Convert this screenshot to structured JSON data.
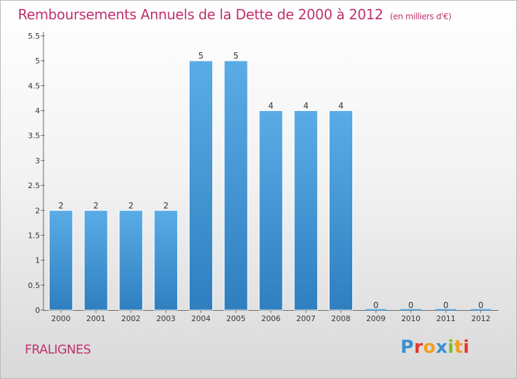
{
  "header": {
    "title": "Remboursements Annuels de la Dette de 2000 à 2012",
    "unit": "(en milliers d'€)"
  },
  "footer": {
    "commune": "FRALIGNES",
    "logo_letters": [
      {
        "ch": "P",
        "color": "#3a8fd0"
      },
      {
        "ch": "r",
        "color": "#e0392b"
      },
      {
        "ch": "o",
        "color": "#f0a020"
      },
      {
        "ch": "x",
        "color": "#3a8fd0"
      },
      {
        "ch": "i",
        "color": "#7cbf2a"
      },
      {
        "ch": "t",
        "color": "#f0a020"
      },
      {
        "ch": "i",
        "color": "#e0392b"
      }
    ]
  },
  "chart_data": {
    "type": "bar",
    "title": "Remboursements Annuels de la Dette de 2000 à 2012",
    "xlabel": "",
    "ylabel": "",
    "categories": [
      "2000",
      "2001",
      "2002",
      "2003",
      "2004",
      "2005",
      "2006",
      "2007",
      "2008",
      "2009",
      "2010",
      "2011",
      "2012"
    ],
    "values": [
      2,
      2,
      2,
      2,
      5,
      5,
      4,
      4,
      4,
      0,
      0,
      0,
      0
    ],
    "data_labels": [
      "2",
      "2",
      "2",
      "2",
      "5",
      "5",
      "4",
      "4",
      "4",
      "0",
      "0",
      "0",
      "0"
    ],
    "ylim": [
      0,
      5.5
    ],
    "yticks": [
      0,
      0.5,
      1,
      1.5,
      2,
      2.5,
      3,
      3.5,
      4,
      4.5,
      5,
      5.5
    ],
    "ytick_labels": [
      "0",
      "0.5",
      "1",
      "1.5",
      "2",
      "2.5",
      "3",
      "3.5",
      "4",
      "4.5",
      "5",
      "5.5"
    ],
    "grid": false,
    "bar_color_top": "#5aace6",
    "bar_color_bottom": "#2f7fc0"
  }
}
